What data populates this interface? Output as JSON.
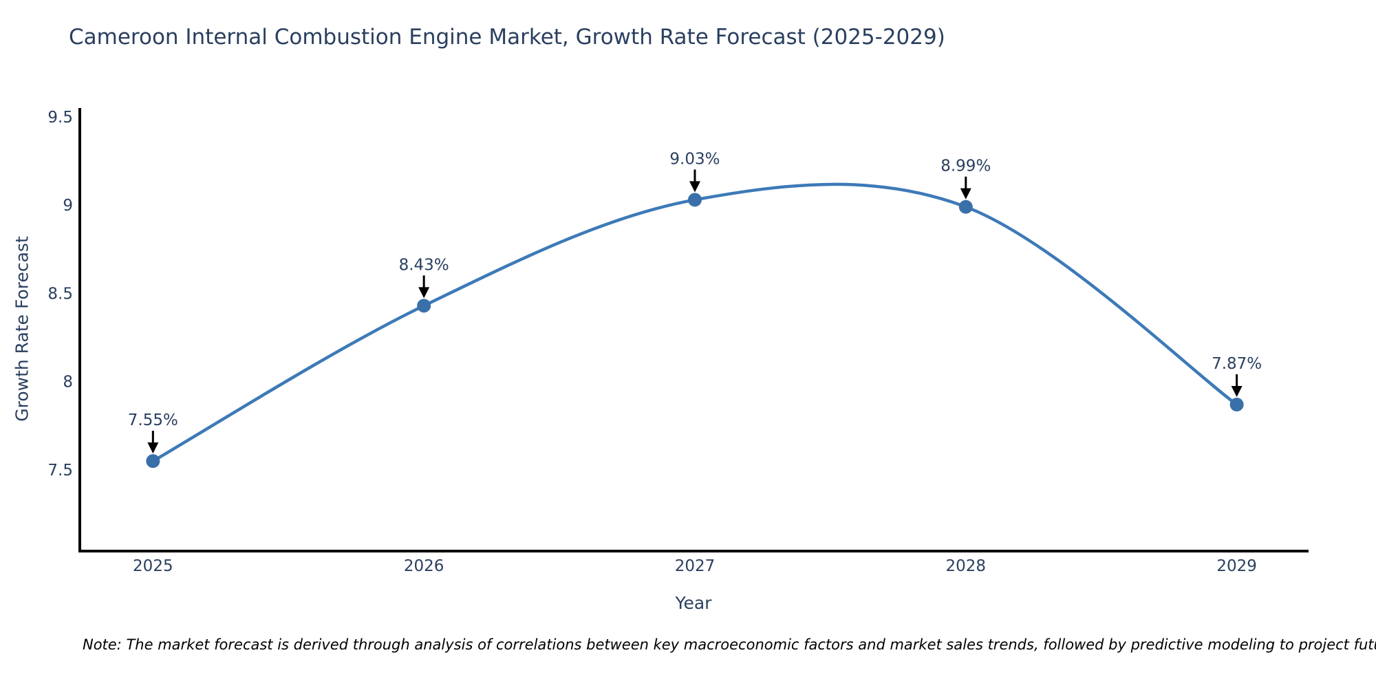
{
  "chart_data": {
    "type": "line",
    "title": "Cameroon Internal Combustion Engine Market, Growth Rate Forecast (2025-2029)",
    "xlabel": "Year",
    "ylabel": "Growth Rate Forecast",
    "x": [
      2025,
      2026,
      2027,
      2028,
      2029
    ],
    "values": [
      7.55,
      8.43,
      9.03,
      8.99,
      7.87
    ],
    "point_labels": [
      "7.55%",
      "8.43%",
      "9.03%",
      "8.99%",
      "7.87%"
    ],
    "x_tick_labels": [
      "2025",
      "2026",
      "2027",
      "2028",
      "2029"
    ],
    "y_ticks": [
      7.5,
      8,
      8.5,
      9,
      9.5
    ],
    "y_tick_labels": [
      "7.5",
      "8",
      "8.5",
      "9",
      "9.5"
    ],
    "xlim": [
      2024.73,
      2029.26
    ],
    "ylim": [
      7.04,
      9.55
    ],
    "grid": false,
    "legend": null,
    "line_smoothing": "spline",
    "colors": {
      "line": "#3d7ab7",
      "marker": "#3a70a9",
      "axis": "#000000",
      "text": "#2a3f5f",
      "annotation_arrow": "#000000",
      "background": "#ffffff"
    },
    "note": "Note: The market forecast is derived through analysis of correlations between key macroeconomic factors and market sales trends, followed by predictive modeling to project future sales"
  }
}
